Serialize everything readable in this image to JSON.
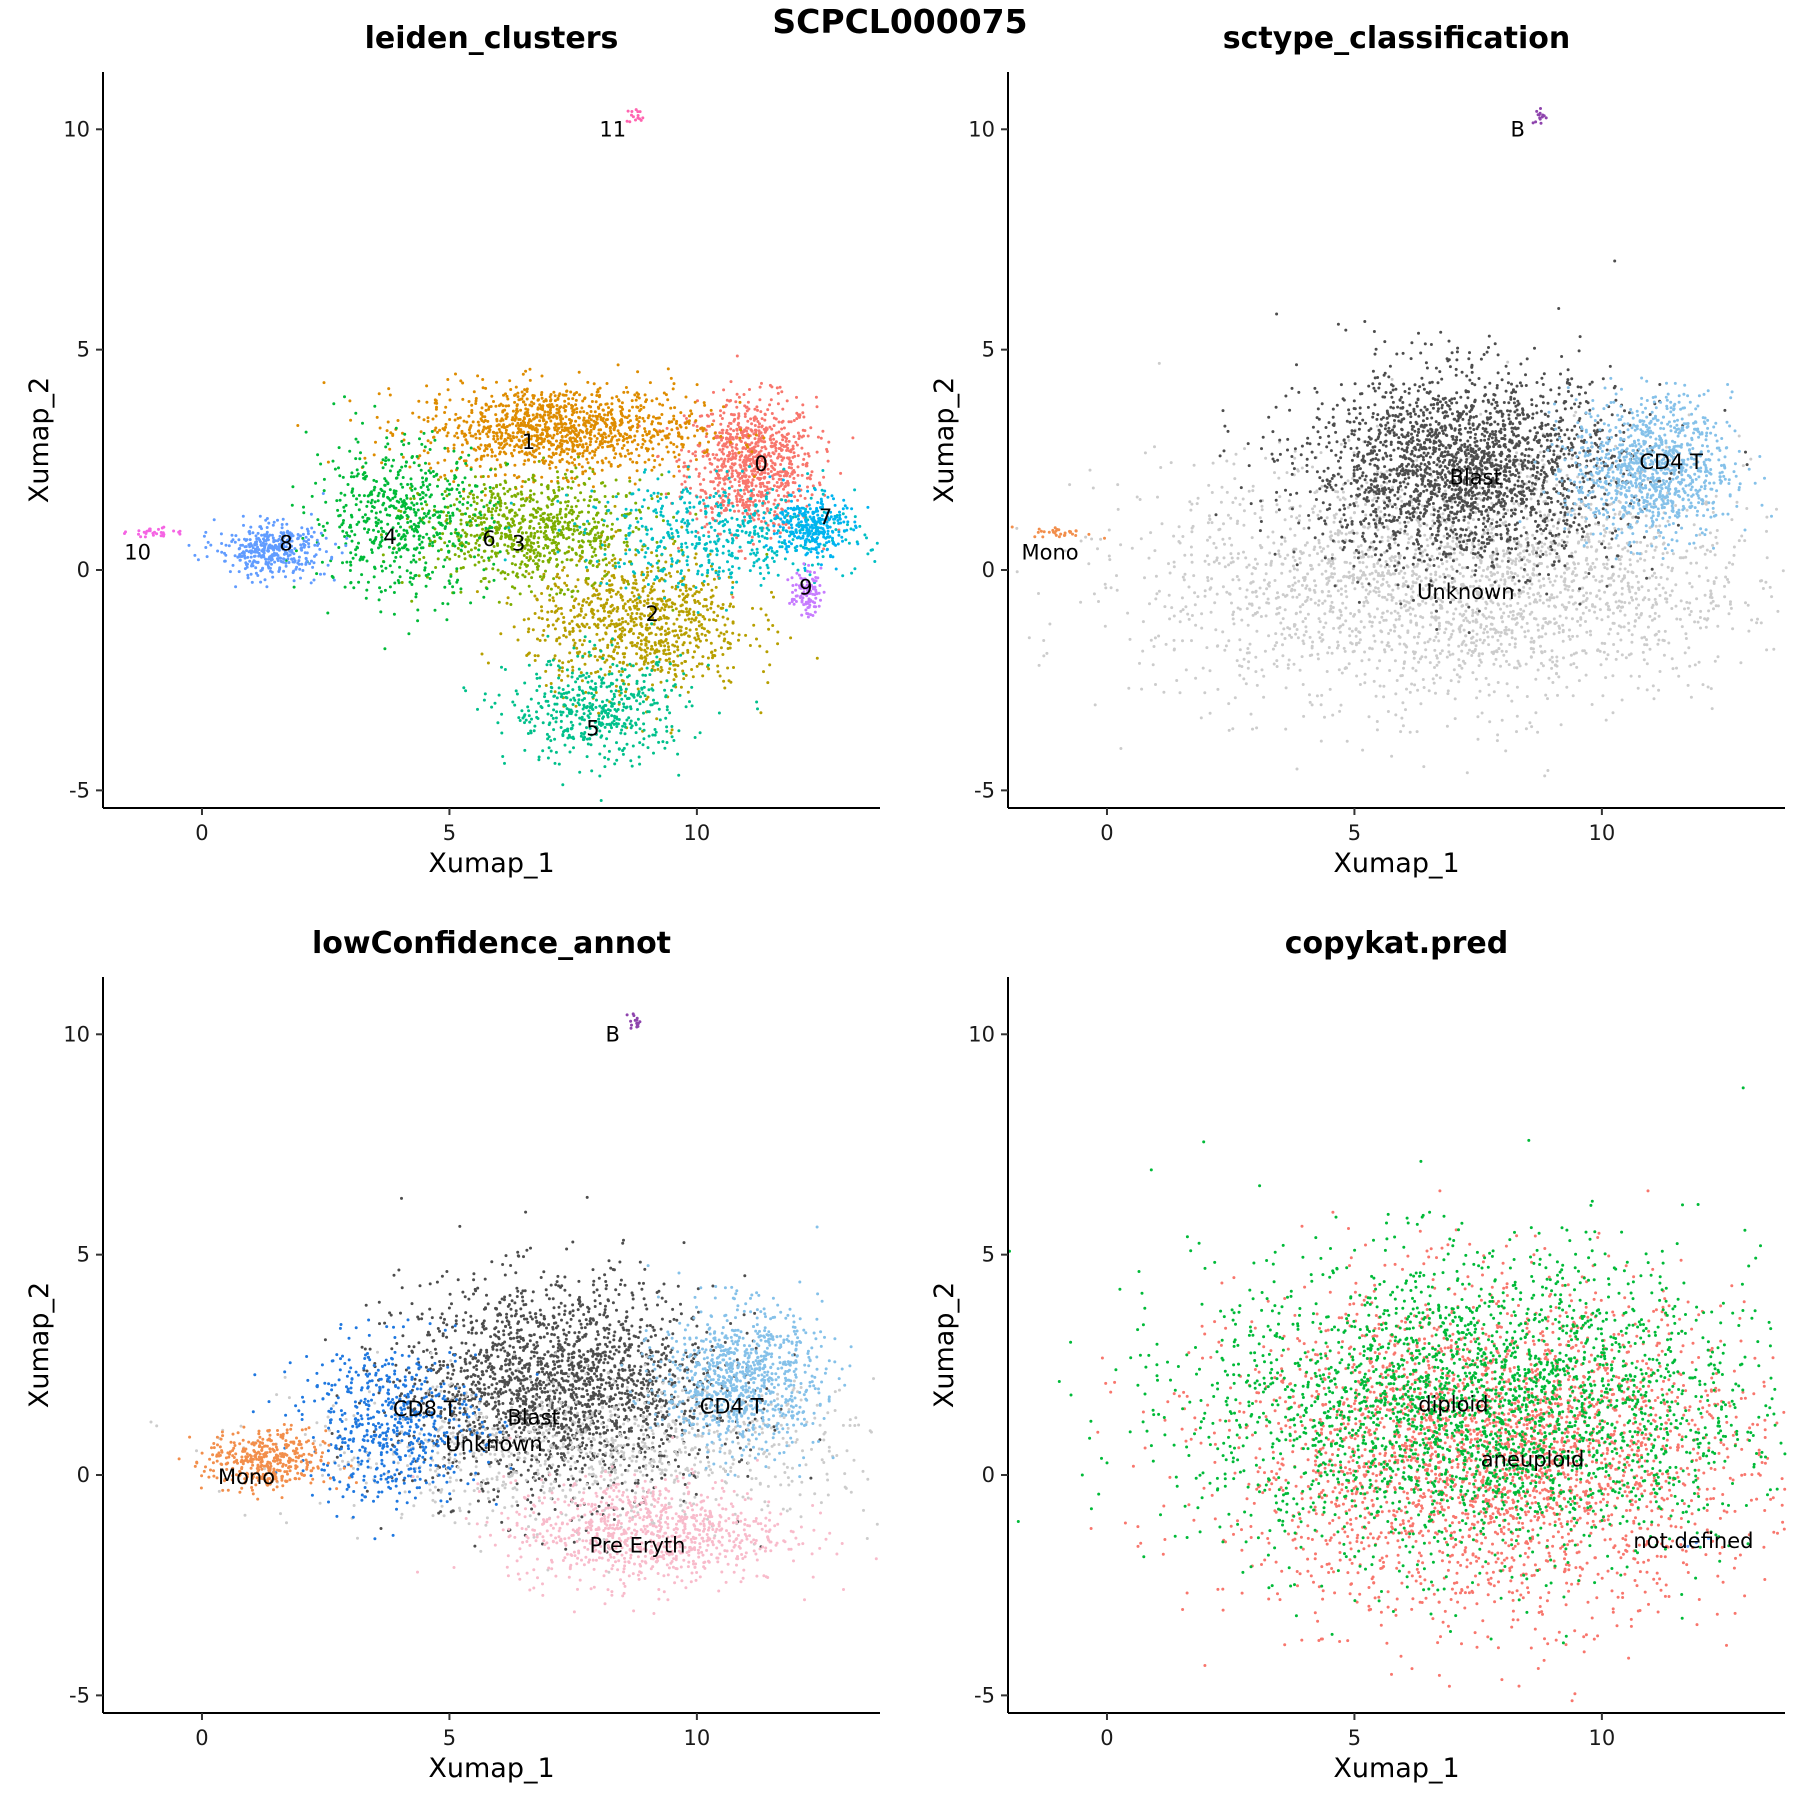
{
  "figure_title": "SCPCL000075",
  "chart_data": [
    {
      "type": "scatter",
      "title": "leiden_clusters",
      "xlabel": "Xumap_1",
      "ylabel": "Xumap_2",
      "xlim": [
        -2,
        13.7
      ],
      "ylim": [
        -5.4,
        11.3
      ],
      "xticks": [
        0,
        5,
        10
      ],
      "yticks": [
        -5,
        0,
        5,
        10
      ],
      "grid": false,
      "legend": "none",
      "labels": [
        {
          "text": "0",
          "x": 11.3,
          "y": 2.4
        },
        {
          "text": "1",
          "x": 6.6,
          "y": 2.9
        },
        {
          "text": "2",
          "x": 9.1,
          "y": -1.0
        },
        {
          "text": "3",
          "x": 6.4,
          "y": 0.6
        },
        {
          "text": "4",
          "x": 3.8,
          "y": 0.75
        },
        {
          "text": "5",
          "x": 7.9,
          "y": -3.6
        },
        {
          "text": "6",
          "x": 5.8,
          "y": 0.7
        },
        {
          "text": "7",
          "x": 12.6,
          "y": 1.2
        },
        {
          "text": "8",
          "x": 1.7,
          "y": 0.6
        },
        {
          "text": "9",
          "x": 12.2,
          "y": -0.4
        },
        {
          "text": "10",
          "x": -1.3,
          "y": 0.4
        },
        {
          "text": "11",
          "x": 8.3,
          "y": 10.0
        }
      ],
      "series": [
        {
          "name": "0",
          "color": "#F8766D",
          "cx": 11.1,
          "cy": 2.4,
          "sx": 0.65,
          "sy": 0.75,
          "n": 900
        },
        {
          "name": "1",
          "color": "#DE8C00",
          "cx": 7.2,
          "cy": 3.2,
          "sx": 1.4,
          "sy": 0.5,
          "n": 1200
        },
        {
          "name": "2",
          "color": "#B79F00",
          "cx": 8.8,
          "cy": -1.2,
          "sx": 1.1,
          "sy": 0.8,
          "n": 900
        },
        {
          "name": "3",
          "color": "#7CAE00",
          "cx": 6.7,
          "cy": 0.9,
          "sx": 1.1,
          "sy": 0.6,
          "n": 800
        },
        {
          "name": "4",
          "color": "#00BA38",
          "cx": 4.0,
          "cy": 1.2,
          "sx": 0.9,
          "sy": 0.9,
          "n": 600
        },
        {
          "name": "5",
          "color": "#00C08B",
          "cx": 8.0,
          "cy": -3.2,
          "sx": 0.9,
          "sy": 0.6,
          "n": 500
        },
        {
          "name": "6",
          "color": "#00BFC4",
          "cx": 10.5,
          "cy": 0.8,
          "sx": 1.4,
          "sy": 0.6,
          "n": 500
        },
        {
          "name": "7",
          "color": "#00B4F0",
          "cx": 12.3,
          "cy": 1.0,
          "sx": 0.35,
          "sy": 0.35,
          "n": 300
        },
        {
          "name": "8",
          "color": "#619CFF",
          "cx": 1.4,
          "cy": 0.45,
          "sx": 0.55,
          "sy": 0.3,
          "n": 400
        },
        {
          "name": "9",
          "color": "#C77CFF",
          "cx": 12.2,
          "cy": -0.5,
          "sx": 0.15,
          "sy": 0.25,
          "n": 100
        },
        {
          "name": "10",
          "color": "#F564E3",
          "cx": -1.0,
          "cy": 0.85,
          "sx": 0.25,
          "sy": 0.06,
          "n": 30
        },
        {
          "name": "11",
          "color": "#FF64B0",
          "cx": 8.75,
          "cy": 10.3,
          "sx": 0.08,
          "sy": 0.1,
          "n": 15
        }
      ]
    },
    {
      "type": "scatter",
      "title": "sctype_classification",
      "xlabel": "Xumap_1",
      "ylabel": "Xumap_2",
      "xlim": [
        -2,
        13.7
      ],
      "ylim": [
        -5.4,
        11.3
      ],
      "xticks": [
        0,
        5,
        10
      ],
      "yticks": [
        -5,
        0,
        5,
        10
      ],
      "grid": false,
      "legend": "none",
      "labels": [
        {
          "text": "B",
          "x": 8.3,
          "y": 10.0
        },
        {
          "text": "Mono",
          "x": -1.15,
          "y": 0.4
        },
        {
          "text": "Blast",
          "x": 7.45,
          "y": 2.1
        },
        {
          "text": "CD4 T",
          "x": 11.4,
          "y": 2.45
        },
        {
          "text": "Unknown",
          "x": 7.25,
          "y": -0.5
        }
      ],
      "series": [
        {
          "name": "Unknown",
          "color": "#CCCCCC",
          "cx": 7.0,
          "cy": -0.3,
          "sx": 3.0,
          "sy": 1.4,
          "n": 2600
        },
        {
          "name": "Blast",
          "color": "#4D4D4D",
          "cx": 7.2,
          "cy": 2.3,
          "sx": 1.6,
          "sy": 1.1,
          "n": 2400
        },
        {
          "name": "CD4 T",
          "color": "#85C1E9",
          "cx": 11.0,
          "cy": 2.3,
          "sx": 0.8,
          "sy": 0.8,
          "n": 1000
        },
        {
          "name": "Mono",
          "color": "#F28E4B",
          "cx": -0.9,
          "cy": 0.85,
          "sx": 0.3,
          "sy": 0.06,
          "n": 30
        },
        {
          "name": "B",
          "color": "#8E44AD",
          "cx": 8.75,
          "cy": 10.3,
          "sx": 0.08,
          "sy": 0.1,
          "n": 15
        }
      ]
    },
    {
      "type": "scatter",
      "title": "lowConfidence_annot",
      "xlabel": "Xumap_1",
      "ylabel": "Xumap_2",
      "xlim": [
        -2,
        13.7
      ],
      "ylim": [
        -5.4,
        11.3
      ],
      "xticks": [
        0,
        5,
        10
      ],
      "yticks": [
        -5,
        0,
        5,
        10
      ],
      "grid": false,
      "legend": "none",
      "labels": [
        {
          "text": "B",
          "x": 8.3,
          "y": 10.0
        },
        {
          "text": "CD8 T",
          "x": 4.5,
          "y": 1.5
        },
        {
          "text": "Blast",
          "x": 6.7,
          "y": 1.3
        },
        {
          "text": "Unknown",
          "x": 5.9,
          "y": 0.7
        },
        {
          "text": "CD4 T",
          "x": 10.7,
          "y": 1.55
        },
        {
          "text": "Mono",
          "x": 0.9,
          "y": -0.05
        },
        {
          "text": "Pre Eryth",
          "x": 8.8,
          "y": -1.6
        }
      ],
      "series": [
        {
          "name": "Blast",
          "color": "#4D4D4D",
          "cx": 7.2,
          "cy": 2.0,
          "sx": 1.6,
          "sy": 1.2,
          "n": 2200
        },
        {
          "name": "Unknown",
          "color": "#CCCCCC",
          "cx": 8.0,
          "cy": 0.5,
          "sx": 3.0,
          "sy": 0.8,
          "n": 900
        },
        {
          "name": "CD8 T",
          "color": "#1F78E0",
          "cx": 3.8,
          "cy": 1.2,
          "sx": 0.9,
          "sy": 0.9,
          "n": 600
        },
        {
          "name": "CD4 T",
          "color": "#85C1E9",
          "cx": 10.9,
          "cy": 2.2,
          "sx": 0.8,
          "sy": 0.8,
          "n": 900
        },
        {
          "name": "Mono",
          "color": "#F28E4B",
          "cx": 1.3,
          "cy": 0.3,
          "sx": 0.6,
          "sy": 0.35,
          "n": 400
        },
        {
          "name": "Pre Eryth",
          "color": "#F8BBCB",
          "cx": 9.0,
          "cy": -1.3,
          "sx": 1.4,
          "sy": 0.6,
          "n": 900
        },
        {
          "name": "B",
          "color": "#8E44AD",
          "cx": 8.75,
          "cy": 10.3,
          "sx": 0.08,
          "sy": 0.1,
          "n": 15
        }
      ]
    },
    {
      "type": "scatter",
      "title": "copykat.pred",
      "xlabel": "Xumap_1",
      "ylabel": "Xumap_2",
      "xlim": [
        -2,
        13.7
      ],
      "ylim": [
        -5.4,
        11.3
      ],
      "xticks": [
        0,
        5,
        10
      ],
      "yticks": [
        -5,
        0,
        5,
        10
      ],
      "grid": false,
      "legend": "none",
      "labels": [
        {
          "text": "diploid",
          "x": 7.0,
          "y": 1.6
        },
        {
          "text": "aneuploid",
          "x": 8.6,
          "y": 0.35
        },
        {
          "text": "not.defined",
          "x": 11.85,
          "y": -1.5
        }
      ],
      "series": [
        {
          "name": "aneuploid",
          "color": "#F8766D",
          "cx": 7.8,
          "cy": 0.5,
          "sx": 2.6,
          "sy": 1.8,
          "n": 3000
        },
        {
          "name": "diploid",
          "color": "#00BA38",
          "cx": 7.5,
          "cy": 1.5,
          "sx": 2.8,
          "sy": 1.7,
          "n": 3000
        },
        {
          "name": "not.defined",
          "color": "#619CFF",
          "cx": 11.8,
          "cy": -1.5,
          "sx": 0.3,
          "sy": 0.1,
          "n": 5
        }
      ]
    }
  ]
}
